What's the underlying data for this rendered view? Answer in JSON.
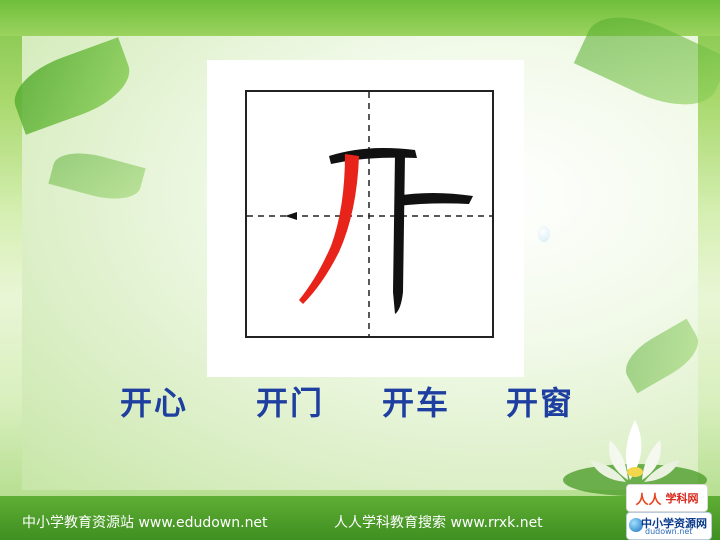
{
  "character": {
    "glyph": "开",
    "highlight_color": "#e8231a",
    "stroke_color": "#111111"
  },
  "words": [
    "开心",
    "开门",
    "开车",
    "开窗"
  ],
  "footer": {
    "left_text": "中小学教育资源站 www.edudown.net",
    "right_text": "人人学科教育搜索 www.rrxk.net"
  },
  "logos": {
    "xueke": {
      "mark": "人人",
      "text": "学科网"
    },
    "zxxzy": {
      "title": "中小学资源网",
      "url": "dudown.net"
    }
  },
  "colors": {
    "word_color": "#1e3fa0",
    "background_green": "#a8d86c"
  }
}
